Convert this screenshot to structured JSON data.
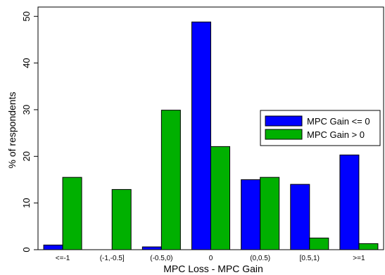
{
  "chart_data": {
    "type": "bar",
    "xlabel": "MPC Loss - MPC Gain",
    "ylabel": "% of respondents",
    "ylim": [
      0,
      52
    ],
    "yticks": [
      0,
      10,
      20,
      30,
      40,
      50
    ],
    "categories": [
      "<=-1",
      "(-1,-0.5]",
      "(-0.5,0)",
      "0",
      "(0,0.5)",
      "[0.5,1)",
      ">=1"
    ],
    "series": [
      {
        "name": "MPC Gain <= 0",
        "color": "#0000ff",
        "values": [
          1.0,
          0.0,
          0.6,
          48.8,
          15.0,
          14.0,
          20.3
        ]
      },
      {
        "name": "MPC Gain > 0",
        "color": "#00b000",
        "values": [
          15.5,
          12.9,
          29.9,
          22.1,
          15.5,
          2.5,
          1.3
        ]
      }
    ],
    "legend": {
      "placement": "right"
    },
    "grid": false
  }
}
